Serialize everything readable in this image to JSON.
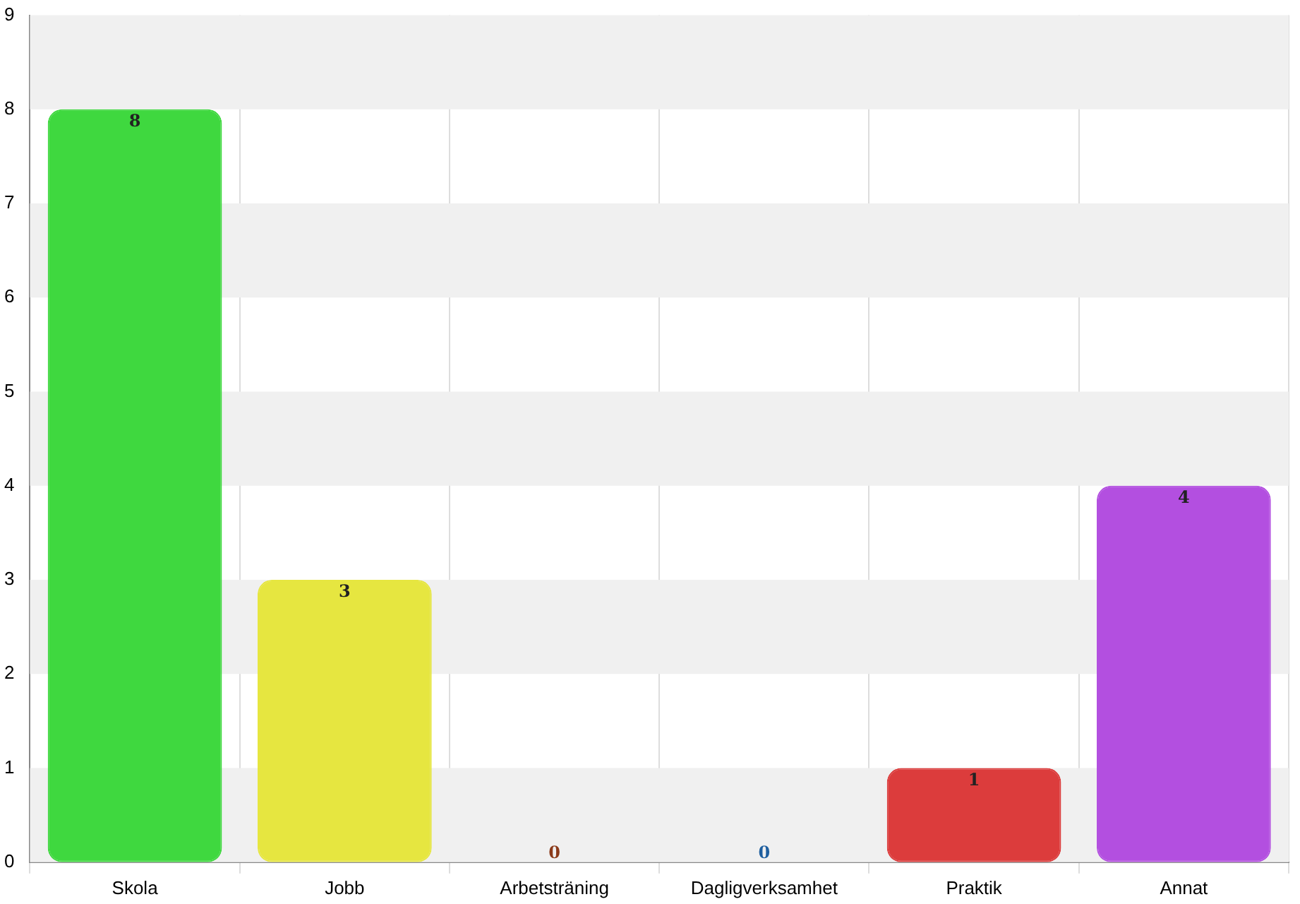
{
  "chart_data": {
    "type": "bar",
    "categories": [
      "Skola",
      "Jobb",
      "Arbetsträning",
      "Dagligverksamhet",
      "Praktik",
      "Annat"
    ],
    "values": [
      8,
      3,
      0,
      0,
      1,
      4
    ],
    "colors": [
      "#3fd83f",
      "#e6e640",
      "#8b3a1a",
      "#1f5f9f",
      "#dc3c3c",
      "#b34fe0"
    ],
    "ylim": [
      0,
      9
    ],
    "yticks": [
      0,
      1,
      2,
      3,
      4,
      5,
      6,
      7,
      8,
      9
    ],
    "grid": true,
    "data_labels": true,
    "legend": false
  }
}
